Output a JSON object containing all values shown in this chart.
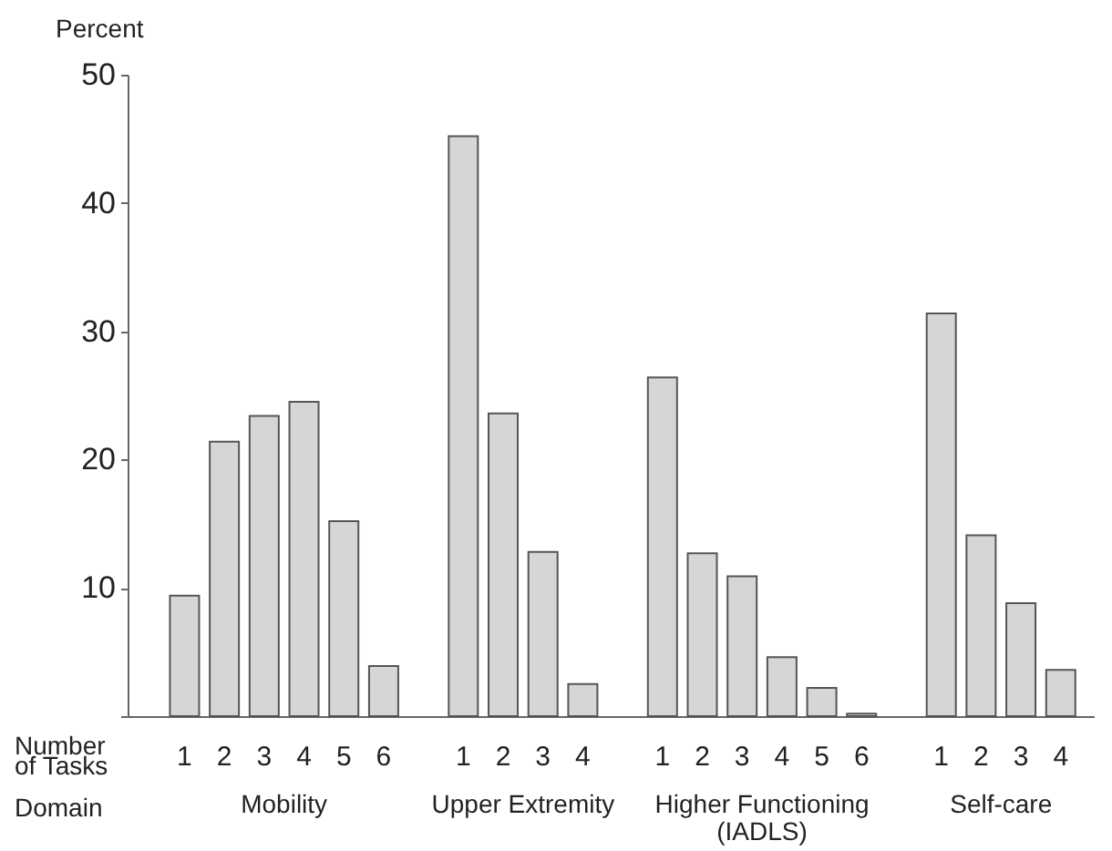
{
  "chart_data": {
    "type": "bar",
    "ylabel": "Percent",
    "xlabel": "Number of Tasks",
    "legend_title": "Domain",
    "categories": [
      "1",
      "2",
      "3",
      "4",
      "5",
      "6",
      null,
      "1",
      "2",
      "3",
      "4",
      null,
      "1",
      "2",
      "3",
      "4",
      "5",
      "6",
      null,
      "1",
      "2",
      "3",
      "4"
    ],
    "ylim": [
      0,
      50
    ],
    "yticks": [
      {
        "value": 0,
        "label": null
      },
      10,
      20,
      30,
      40,
      50
    ],
    "grid": false,
    "series": [
      {
        "name": "Mobility",
        "color": "#d6d6d6",
        "values": [
          9.4,
          21.4,
          23.4,
          24.5,
          15.2,
          3.9,
          null,
          null,
          null,
          null,
          null,
          null,
          null,
          null,
          null,
          null,
          null,
          null,
          null,
          null,
          null,
          null,
          null
        ]
      },
      {
        "name": "Upper Extremity",
        "color": "#d6d6d6",
        "values": [
          null,
          null,
          null,
          null,
          null,
          null,
          null,
          45.2,
          23.6,
          12.8,
          2.5,
          null,
          null,
          null,
          null,
          null,
          null,
          null,
          null,
          null,
          null,
          null,
          null
        ]
      },
      {
        "name": "Higher Functioning (IADLS)",
        "color": "#d6d6d6",
        "values": [
          null,
          null,
          null,
          null,
          null,
          null,
          null,
          null,
          null,
          null,
          null,
          null,
          26.4,
          12.7,
          10.9,
          4.6,
          2.2,
          0.2,
          null,
          null,
          null,
          null,
          null
        ]
      },
      {
        "name": "Self-care",
        "color": "#d6d6d6",
        "values": [
          null,
          null,
          null,
          null,
          null,
          null,
          null,
          null,
          null,
          null,
          null,
          null,
          null,
          null,
          null,
          null,
          null,
          null,
          null,
          31.4,
          14.1,
          8.8,
          3.6
        ]
      }
    ]
  }
}
